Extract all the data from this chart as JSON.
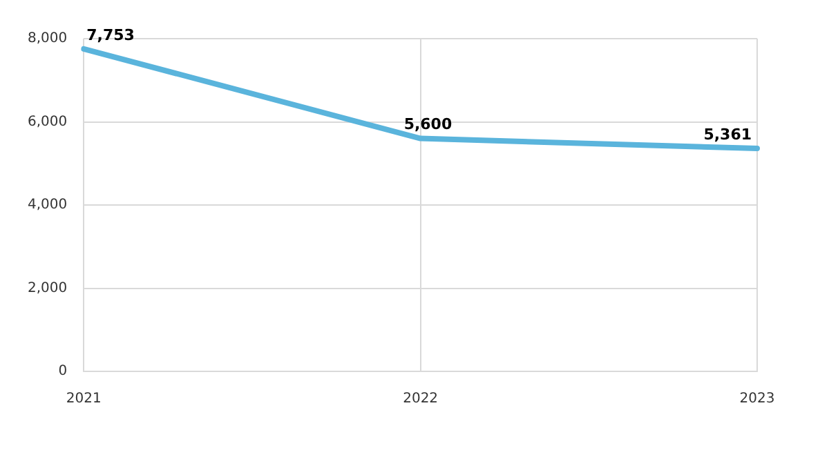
{
  "chart_data": {
    "type": "line",
    "categories": [
      "2021",
      "2022",
      "2023"
    ],
    "series": [
      {
        "color": "#5ab4dc",
        "values": [
          7753,
          5600,
          5361
        ],
        "value_labels": [
          "7,753",
          "5,600",
          "5,361"
        ]
      }
    ],
    "ylim": [
      0,
      8000
    ],
    "yticks": [
      {
        "value": 0,
        "label": "0"
      },
      {
        "value": 2000,
        "label": "2,000"
      },
      {
        "value": 4000,
        "label": "4,000"
      },
      {
        "value": 6000,
        "label": "6,000"
      },
      {
        "value": 8000,
        "label": "8,000"
      }
    ],
    "grid": true,
    "legend": false,
    "marker": "none"
  }
}
